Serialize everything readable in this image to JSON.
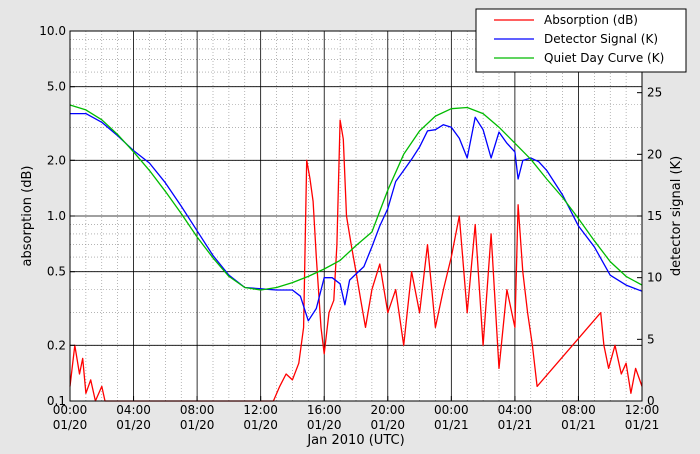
{
  "chart_data": {
    "type": "line",
    "xlabel": "Jan 2010 (UTC)",
    "ylabel_left": "absorption (dB)",
    "ylabel_right": "detector signal (K)",
    "x_range_hours": [
      0,
      36
    ],
    "x_ticks": [
      {
        "hour": 0,
        "time": "00:00",
        "date": "01/20"
      },
      {
        "hour": 4,
        "time": "04:00",
        "date": "01/20"
      },
      {
        "hour": 8,
        "time": "08:00",
        "date": "01/20"
      },
      {
        "hour": 12,
        "time": "12:00",
        "date": "01/20"
      },
      {
        "hour": 16,
        "time": "16:00",
        "date": "01/20"
      },
      {
        "hour": 20,
        "time": "20:00",
        "date": "01/20"
      },
      {
        "hour": 24,
        "time": "00:00",
        "date": "01/21"
      },
      {
        "hour": 28,
        "time": "04:00",
        "date": "01/21"
      },
      {
        "hour": 32,
        "time": "08:00",
        "date": "01/21"
      },
      {
        "hour": 36,
        "time": "12:00",
        "date": "01/21"
      }
    ],
    "y_left": {
      "scale": "log",
      "range": [
        0.1,
        10.0
      ],
      "ticks": [
        {
          "value": 10.0,
          "label": "10.0"
        },
        {
          "value": 5.0,
          "label": "5.0"
        },
        {
          "value": 2.0,
          "label": "2.0"
        },
        {
          "value": 1.0,
          "label": "1.0"
        },
        {
          "value": 0.5,
          "label": "0.5"
        },
        {
          "value": 0.2,
          "label": "0.2"
        },
        {
          "value": 0.1,
          "label": "0.1"
        }
      ]
    },
    "y_right": {
      "scale": "linear",
      "range": [
        0,
        30
      ],
      "ticks": [
        0,
        5,
        10,
        15,
        20,
        25
      ]
    },
    "grid": true,
    "legend_position": "top-right",
    "series": [
      {
        "name": "Absorption (dB)",
        "color": "#ff0000",
        "axis": "left",
        "x": [
          0.0,
          0.3,
          0.6,
          0.8,
          1.0,
          1.3,
          1.6,
          2.0,
          2.2,
          2.6,
          12.8,
          13.2,
          13.6,
          14.0,
          14.4,
          14.7,
          14.9,
          15.1,
          15.3,
          15.5,
          15.8,
          16.0,
          16.3,
          16.6,
          16.8,
          17.0,
          17.2,
          17.4,
          17.7,
          18.0,
          18.3,
          18.6,
          19.0,
          19.5,
          20.0,
          20.5,
          21.0,
          21.5,
          22.0,
          22.5,
          23.0,
          23.5,
          24.0,
          24.5,
          25.0,
          25.5,
          26.0,
          26.5,
          27.0,
          27.5,
          28.0,
          28.2,
          28.5,
          28.8,
          29.1,
          29.4,
          33.4,
          33.6,
          33.9,
          34.3,
          34.7,
          35.0,
          35.3,
          35.6,
          36.0
        ],
        "y": [
          0.12,
          0.2,
          0.14,
          0.17,
          0.11,
          0.13,
          0.1,
          0.12,
          0.1,
          0.1,
          0.1,
          0.12,
          0.14,
          0.13,
          0.16,
          0.25,
          2.0,
          1.6,
          1.2,
          0.6,
          0.25,
          0.18,
          0.3,
          0.35,
          0.7,
          3.3,
          2.6,
          1.0,
          0.7,
          0.5,
          0.35,
          0.25,
          0.4,
          0.55,
          0.3,
          0.4,
          0.2,
          0.5,
          0.3,
          0.7,
          0.25,
          0.4,
          0.6,
          1.0,
          0.3,
          0.9,
          0.2,
          0.8,
          0.15,
          0.4,
          0.25,
          1.15,
          0.5,
          0.3,
          0.2,
          0.12,
          0.3,
          0.2,
          0.15,
          0.2,
          0.14,
          0.16,
          0.11,
          0.15,
          0.12
        ]
      },
      {
        "name": "Detector Signal (K)",
        "color": "#0000ff",
        "axis": "right",
        "x": [
          0,
          1,
          2,
          3,
          4,
          5,
          6,
          7,
          8,
          9,
          10,
          11,
          12,
          13,
          14,
          14.5,
          15,
          15.5,
          16,
          16.5,
          17,
          17.3,
          17.6,
          18,
          18.5,
          19,
          19.5,
          20,
          20.5,
          21,
          21.5,
          22,
          22.5,
          23,
          23.5,
          24,
          24.5,
          25,
          25.5,
          26,
          26.5,
          27,
          27.5,
          28,
          28.2,
          28.5,
          29,
          29.5,
          30,
          31,
          32,
          33,
          34,
          35,
          36
        ],
        "y": [
          23.3,
          23.3,
          22.6,
          21.5,
          20.3,
          19.3,
          17.7,
          15.8,
          13.8,
          11.8,
          10.2,
          9.2,
          9.1,
          9.0,
          9.0,
          8.5,
          6.5,
          7.5,
          10.0,
          10.0,
          9.5,
          7.8,
          9.8,
          10.3,
          10.9,
          12.5,
          14.2,
          15.6,
          17.8,
          18.7,
          19.6,
          20.6,
          21.9,
          22.0,
          22.4,
          22.2,
          21.3,
          19.7,
          23.0,
          22.0,
          19.7,
          21.8,
          20.9,
          20.2,
          18.0,
          19.5,
          19.7,
          19.4,
          18.7,
          16.7,
          14.2,
          12.5,
          10.2,
          9.4,
          8.9
        ]
      },
      {
        "name": "Quiet Day Curve (K)",
        "color": "#00bb00",
        "axis": "right",
        "x": [
          0,
          1,
          2,
          3,
          4,
          5,
          6,
          7,
          8,
          9,
          10,
          11,
          12,
          13,
          14,
          15,
          16,
          17,
          18,
          19,
          20,
          21,
          22,
          23,
          24,
          25,
          26,
          27,
          28,
          29,
          30,
          31,
          32,
          33,
          34,
          35,
          36
        ],
        "y": [
          24.0,
          23.6,
          22.8,
          21.6,
          20.2,
          18.7,
          17.0,
          15.2,
          13.3,
          11.6,
          10.1,
          9.2,
          9.0,
          9.2,
          9.6,
          10.1,
          10.7,
          11.4,
          12.6,
          13.7,
          17.1,
          20.0,
          21.9,
          23.1,
          23.7,
          23.8,
          23.3,
          22.2,
          20.9,
          19.6,
          18.0,
          16.5,
          14.8,
          13.0,
          11.3,
          10.1,
          9.4
        ]
      }
    ]
  }
}
